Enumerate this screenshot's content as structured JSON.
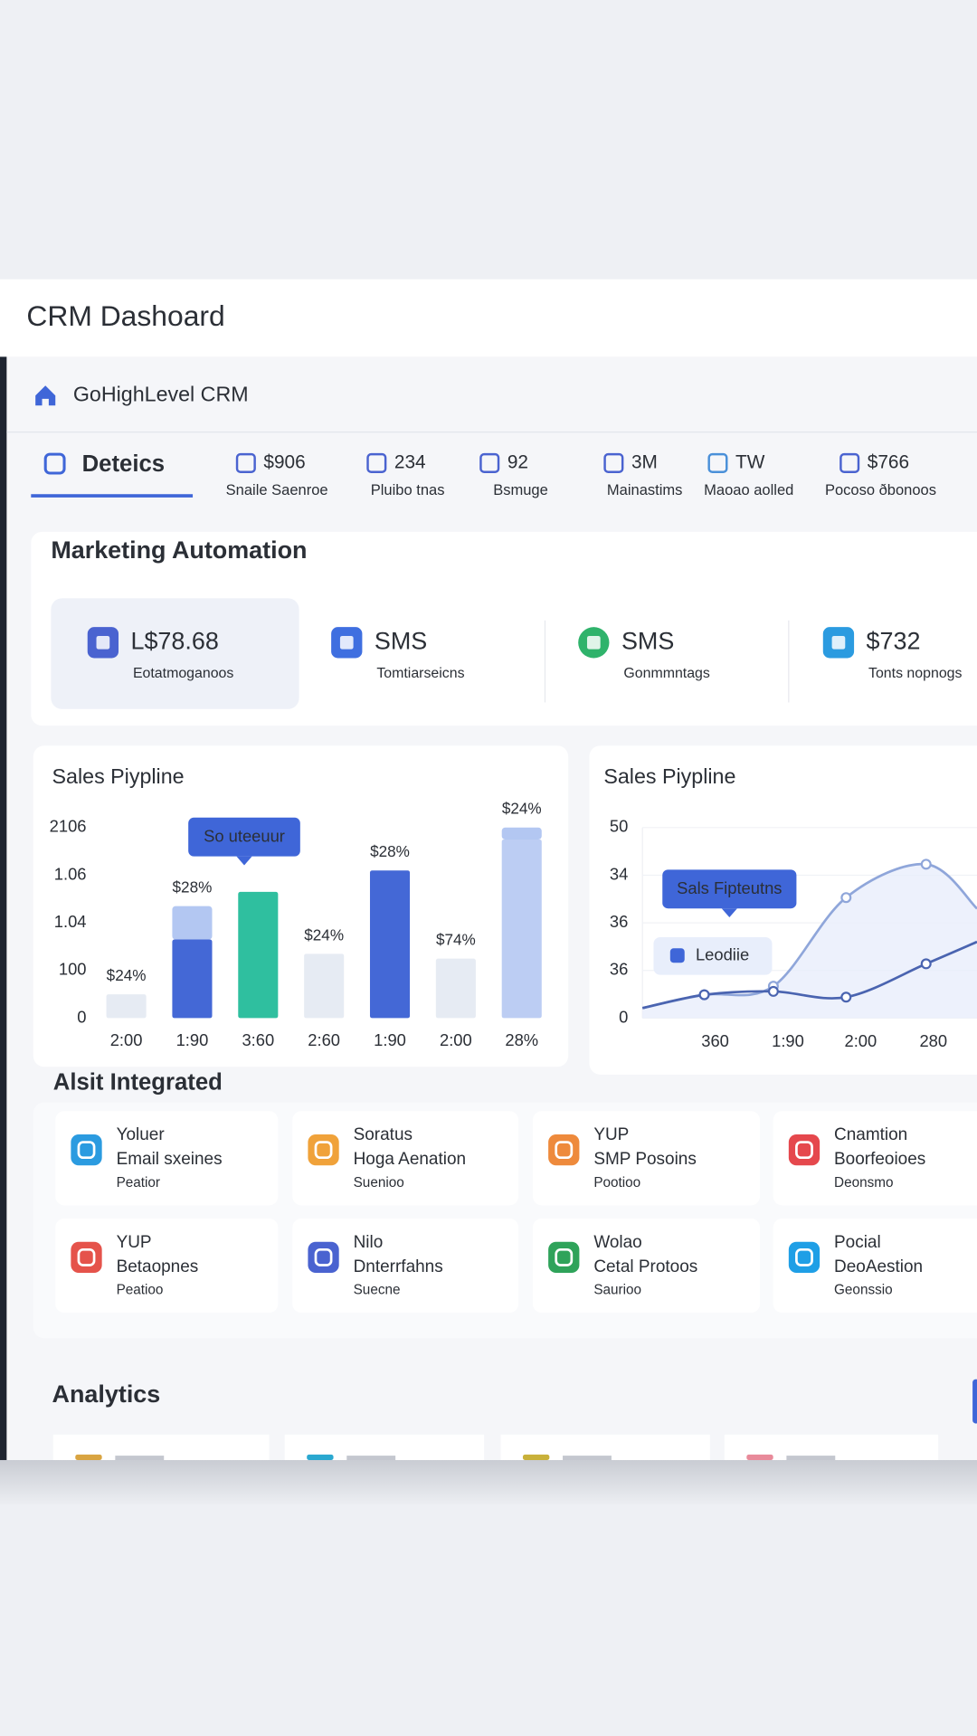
{
  "header": {
    "title": "CRM Dashoard"
  },
  "nav": {
    "brand": "GoHighLevel CRM"
  },
  "tabs": {
    "active": "Deteics",
    "stats": [
      {
        "value": "$906",
        "label": "Snaile Saenroe"
      },
      {
        "value": "234",
        "label": "Pluibo tnas"
      },
      {
        "value": "92",
        "label": "Bsmuge"
      },
      {
        "value": "3M",
        "label": "Mainastims"
      },
      {
        "value": "TW",
        "label": "Maoao aolled"
      },
      {
        "value": "$766",
        "label": "Pocoso ðbonoos"
      }
    ]
  },
  "marketing": {
    "title": "Marketing Automation",
    "cards": [
      {
        "value": "L$78.68",
        "label": "Eotatmoganoos"
      },
      {
        "value": "SMS",
        "label": "Tomtiarseicns"
      },
      {
        "value": "SMS",
        "label": "Gonmmntags"
      },
      {
        "value": "$732",
        "label": "Tonts nopnogs"
      }
    ]
  },
  "bar_chart": {
    "type": "bar",
    "title": "Sales Piypline",
    "categories": [
      "2:00",
      "1:90",
      "3:60",
      "2:60",
      "1:90",
      "2:00",
      "28%"
    ],
    "series": [
      {
        "values": [
          0.5,
          1.65,
          2.65,
          1.35,
          3.1,
          1.25,
          3.75
        ],
        "colors": [
          "#e6ebf3",
          "#4468d6",
          "#2fbf9f",
          "#e6ebf3",
          "#4468d6",
          "#e6ebf3",
          "#bccdf3"
        ]
      },
      {
        "values": [
          null,
          0.7,
          null,
          null,
          null,
          null,
          0.25
        ],
        "color": "#b3c7f2"
      }
    ],
    "ylim": [
      0,
      4
    ],
    "yticks": [
      0,
      {
        "value": 1,
        "label": "100"
      },
      {
        "value": 2,
        "label": "1.04"
      },
      {
        "value": 3,
        "label": "1.06"
      },
      {
        "value": 4,
        "label": "2106"
      }
    ],
    "annotations": [
      "$24%",
      "$28%",
      null,
      "$24%",
      "$28%",
      "$74%",
      "$24%"
    ],
    "tooltip": "So uteeuur"
  },
  "line_chart": {
    "type": "line",
    "title": "Sales Piypline",
    "x": [
      0,
      0.85,
      1.8,
      2.8,
      3.9,
      4.6
    ],
    "series": [
      {
        "color": "#8fa6da",
        "values": [
          0.21,
          0.49,
          0.67,
          2.53,
          3.23,
          2.3
        ]
      },
      {
        "name": "Leodiie",
        "color": "#4a64b0",
        "values": [
          0.21,
          0.49,
          0.56,
          0.44,
          1.14,
          1.6
        ]
      }
    ],
    "xlim": [
      0,
      4.6
    ],
    "xticks": [
      {
        "value": 1,
        "label": "360"
      },
      {
        "value": 2,
        "label": "1:90"
      },
      {
        "value": 3,
        "label": "2:00"
      },
      {
        "value": 4,
        "label": "280"
      }
    ],
    "ylim": [
      0,
      4
    ],
    "yticks": [
      0,
      {
        "value": 1,
        "label": "36"
      },
      {
        "value": 2,
        "label": "36"
      },
      {
        "value": 3,
        "label": "34"
      },
      {
        "value": 4,
        "label": "50"
      }
    ],
    "grid": true,
    "tooltip": "Sals Fipteutns"
  },
  "integrations": {
    "title": "Alsit Integrated",
    "cards": [
      {
        "name": "Yoluer",
        "detail": "Email sxeines",
        "status": "Peatior",
        "color": "#2b9be0"
      },
      {
        "name": "Soratus",
        "detail": "Hoga Aenation",
        "status": "Suenioo",
        "color": "#f0a23a"
      },
      {
        "name": "YUP",
        "detail": "SMP Posoins",
        "status": "Pootioo",
        "color": "#ee8a3c"
      },
      {
        "name": "Cnamtion",
        "detail": "Boorfeoioes",
        "status": "Deonsmo",
        "color": "#e5484d"
      },
      {
        "name": "YUP",
        "detail": "Betaopnes",
        "status": "Peatioo",
        "color": "#e5534b"
      },
      {
        "name": "Nilo",
        "detail": "Dnterrfahns",
        "status": "Suecne",
        "color": "#4a63d0"
      },
      {
        "name": "Wolao",
        "detail": "Cetal Protoos",
        "status": "Saurioo",
        "color": "#2fa35a"
      },
      {
        "name": "Pocial",
        "detail": "DeoAestion",
        "status": "Geonssio",
        "color": "#1f9fe6"
      }
    ]
  },
  "analytics": {
    "title": "Analytics"
  }
}
